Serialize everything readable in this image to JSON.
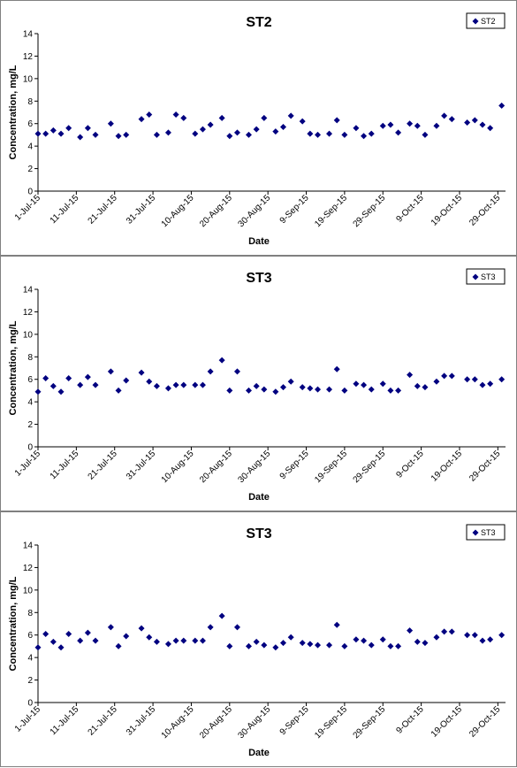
{
  "chart_data": [
    {
      "type": "scatter",
      "title": "ST2",
      "xlabel": "Date",
      "ylabel": "Concentration, mg/L",
      "ylim": [
        0,
        14
      ],
      "yticks": [
        0,
        2,
        4,
        6,
        8,
        10,
        12,
        14
      ],
      "xlim": [
        "2015-07-01",
        "2015-10-31"
      ],
      "xtick_labels": [
        "1-Jul-15",
        "11-Jul-15",
        "21-Jul-15",
        "31-Jul-15",
        "10-Aug-15",
        "20-Aug-15",
        "30-Aug-15",
        "9-Sep-15",
        "19-Sep-15",
        "29-Sep-15",
        "9-Oct-15",
        "19-Oct-15",
        "29-Oct-15"
      ],
      "legend": {
        "position": "top-right",
        "entries": [
          "ST2"
        ]
      },
      "grid": false,
      "marker_color": "#000080",
      "series": [
        {
          "name": "ST2",
          "x": [
            "2015-07-01",
            "2015-07-03",
            "2015-07-05",
            "2015-07-07",
            "2015-07-09",
            "2015-07-12",
            "2015-07-14",
            "2015-07-16",
            "2015-07-20",
            "2015-07-22",
            "2015-07-24",
            "2015-07-28",
            "2015-07-30",
            "2015-08-01",
            "2015-08-04",
            "2015-08-06",
            "2015-08-08",
            "2015-08-11",
            "2015-08-13",
            "2015-08-15",
            "2015-08-18",
            "2015-08-20",
            "2015-08-22",
            "2015-08-25",
            "2015-08-27",
            "2015-08-29",
            "2015-09-01",
            "2015-09-03",
            "2015-09-05",
            "2015-09-08",
            "2015-09-10",
            "2015-09-12",
            "2015-09-15",
            "2015-09-17",
            "2015-09-19",
            "2015-09-22",
            "2015-09-24",
            "2015-09-26",
            "2015-09-29",
            "2015-10-01",
            "2015-10-03",
            "2015-10-06",
            "2015-10-08",
            "2015-10-10",
            "2015-10-13",
            "2015-10-15",
            "2015-10-17",
            "2015-10-21",
            "2015-10-23",
            "2015-10-25",
            "2015-10-27",
            "2015-10-30"
          ],
          "y": [
            5.1,
            5.1,
            5.4,
            5.1,
            5.6,
            4.8,
            5.6,
            5.0,
            6.0,
            4.9,
            5.0,
            6.4,
            6.8,
            5.0,
            5.2,
            6.8,
            6.5,
            5.1,
            5.5,
            5.9,
            6.5,
            4.9,
            5.2,
            5.0,
            5.5,
            6.5,
            5.3,
            5.7,
            6.7,
            6.2,
            5.1,
            5.0,
            5.1,
            6.3,
            5.0,
            5.6,
            4.9,
            5.1,
            5.8,
            5.9,
            5.2,
            6.0,
            5.8,
            5.0,
            5.8,
            6.7,
            6.4,
            6.1,
            6.3,
            5.9,
            5.6,
            7.6
          ]
        }
      ]
    },
    {
      "type": "scatter",
      "title": "ST3",
      "xlabel": "Date",
      "ylabel": "Concentration, mg/L",
      "ylim": [
        0,
        14
      ],
      "yticks": [
        0,
        2,
        4,
        6,
        8,
        10,
        12,
        14
      ],
      "xlim": [
        "2015-07-01",
        "2015-10-31"
      ],
      "xtick_labels": [
        "1-Jul-15",
        "11-Jul-15",
        "21-Jul-15",
        "31-Jul-15",
        "10-Aug-15",
        "20-Aug-15",
        "30-Aug-15",
        "9-Sep-15",
        "19-Sep-15",
        "29-Sep-15",
        "9-Oct-15",
        "19-Oct-15",
        "29-Oct-15"
      ],
      "legend": {
        "position": "top-right",
        "entries": [
          "ST3"
        ]
      },
      "grid": false,
      "marker_color": "#000080",
      "series": [
        {
          "name": "ST3",
          "x": [
            "2015-07-01",
            "2015-07-03",
            "2015-07-05",
            "2015-07-07",
            "2015-07-09",
            "2015-07-12",
            "2015-07-14",
            "2015-07-16",
            "2015-07-20",
            "2015-07-22",
            "2015-07-24",
            "2015-07-28",
            "2015-07-30",
            "2015-08-01",
            "2015-08-04",
            "2015-08-06",
            "2015-08-08",
            "2015-08-11",
            "2015-08-13",
            "2015-08-15",
            "2015-08-18",
            "2015-08-20",
            "2015-08-22",
            "2015-08-25",
            "2015-08-27",
            "2015-08-29",
            "2015-09-01",
            "2015-09-03",
            "2015-09-05",
            "2015-09-08",
            "2015-09-10",
            "2015-09-12",
            "2015-09-15",
            "2015-09-17",
            "2015-09-19",
            "2015-09-22",
            "2015-09-24",
            "2015-09-26",
            "2015-09-29",
            "2015-10-01",
            "2015-10-03",
            "2015-10-06",
            "2015-10-08",
            "2015-10-10",
            "2015-10-13",
            "2015-10-15",
            "2015-10-17",
            "2015-10-21",
            "2015-10-23",
            "2015-10-25",
            "2015-10-27",
            "2015-10-30"
          ],
          "y": [
            4.9,
            6.1,
            5.4,
            4.9,
            6.1,
            5.5,
            6.2,
            5.5,
            6.7,
            5.0,
            5.9,
            6.6,
            5.8,
            5.4,
            5.2,
            5.5,
            5.5,
            5.5,
            5.5,
            6.7,
            7.7,
            5.0,
            6.7,
            5.0,
            5.4,
            5.1,
            4.9,
            5.3,
            5.8,
            5.3,
            5.2,
            5.1,
            5.1,
            6.9,
            5.0,
            5.6,
            5.5,
            5.1,
            5.6,
            5.0,
            5.0,
            6.4,
            5.4,
            5.3,
            5.8,
            6.3,
            6.3,
            6.0,
            6.0,
            5.5,
            5.6,
            6.0
          ]
        }
      ]
    },
    {
      "type": "scatter",
      "title": "ST3",
      "xlabel": "Date",
      "ylabel": "Concentration, mg/L",
      "ylim": [
        0,
        14
      ],
      "yticks": [
        0,
        2,
        4,
        6,
        8,
        10,
        12,
        14
      ],
      "xlim": [
        "2015-07-01",
        "2015-10-31"
      ],
      "xtick_labels": [
        "1-Jul-15",
        "11-Jul-15",
        "21-Jul-15",
        "31-Jul-15",
        "10-Aug-15",
        "20-Aug-15",
        "30-Aug-15",
        "9-Sep-15",
        "19-Sep-15",
        "29-Sep-15",
        "9-Oct-15",
        "19-Oct-15",
        "29-Oct-15"
      ],
      "legend": {
        "position": "top-right",
        "entries": [
          "ST3"
        ]
      },
      "grid": false,
      "marker_color": "#000080",
      "series": [
        {
          "name": "ST3",
          "x": [
            "2015-07-01",
            "2015-07-03",
            "2015-07-05",
            "2015-07-07",
            "2015-07-09",
            "2015-07-12",
            "2015-07-14",
            "2015-07-16",
            "2015-07-20",
            "2015-07-22",
            "2015-07-24",
            "2015-07-28",
            "2015-07-30",
            "2015-08-01",
            "2015-08-04",
            "2015-08-06",
            "2015-08-08",
            "2015-08-11",
            "2015-08-13",
            "2015-08-15",
            "2015-08-18",
            "2015-08-20",
            "2015-08-22",
            "2015-08-25",
            "2015-08-27",
            "2015-08-29",
            "2015-09-01",
            "2015-09-03",
            "2015-09-05",
            "2015-09-08",
            "2015-09-10",
            "2015-09-12",
            "2015-09-15",
            "2015-09-17",
            "2015-09-19",
            "2015-09-22",
            "2015-09-24",
            "2015-09-26",
            "2015-09-29",
            "2015-10-01",
            "2015-10-03",
            "2015-10-06",
            "2015-10-08",
            "2015-10-10",
            "2015-10-13",
            "2015-10-15",
            "2015-10-17",
            "2015-10-21",
            "2015-10-23",
            "2015-10-25",
            "2015-10-27",
            "2015-10-30"
          ],
          "y": [
            4.9,
            6.1,
            5.4,
            4.9,
            6.1,
            5.5,
            6.2,
            5.5,
            6.7,
            5.0,
            5.9,
            6.6,
            5.8,
            5.4,
            5.2,
            5.5,
            5.5,
            5.5,
            5.5,
            6.7,
            7.7,
            5.0,
            6.7,
            5.0,
            5.4,
            5.1,
            4.9,
            5.3,
            5.8,
            5.3,
            5.2,
            5.1,
            5.1,
            6.9,
            5.0,
            5.6,
            5.5,
            5.1,
            5.6,
            5.0,
            5.0,
            6.4,
            5.4,
            5.3,
            5.8,
            6.3,
            6.3,
            6.0,
            6.0,
            5.5,
            5.6,
            6.0
          ]
        }
      ]
    }
  ]
}
